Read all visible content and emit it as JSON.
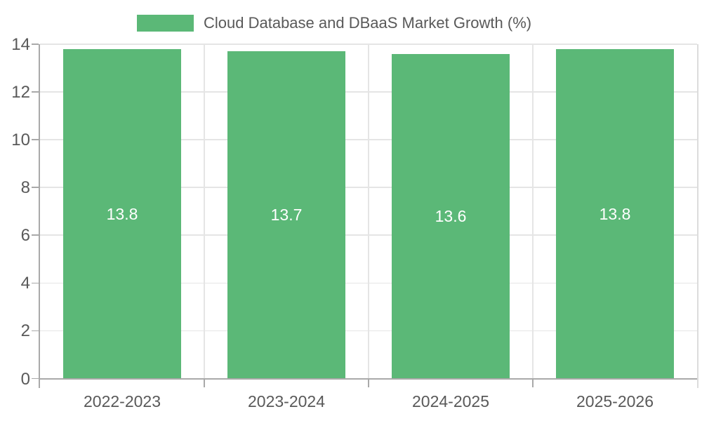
{
  "chart_data": {
    "type": "bar",
    "title": "Cloud Database and DBaaS Market Growth (%)",
    "categories": [
      "2022-2023",
      "2023-2024",
      "2024-2025",
      "2025-2026"
    ],
    "values": [
      13.8,
      13.7,
      13.6,
      13.8
    ],
    "value_labels": [
      "13.8",
      "13.7",
      "13.6",
      "13.8"
    ],
    "xlabel": "",
    "ylabel": "",
    "ylim": [
      0,
      14
    ],
    "yticks": [
      0,
      2,
      4,
      6,
      8,
      10,
      12,
      14
    ],
    "grid": true,
    "legend_position": "top-center",
    "value_labels_inside_bars": true
  },
  "legend": {
    "label": "Cloud Database and DBaaS Market Growth (%)"
  },
  "colors": {
    "bar": "#5bb877",
    "grid": "#e5e5e5",
    "spine": "#a9a9a9",
    "spine_light": "#dcdcdc",
    "text": "#595959",
    "value_text": "#ffffff",
    "background": "#ffffff"
  }
}
